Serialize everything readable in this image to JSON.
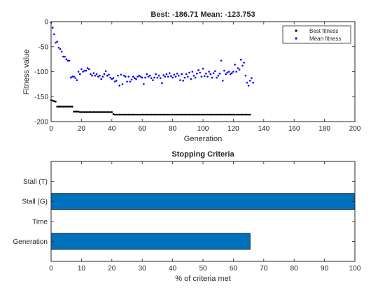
{
  "figure": {
    "background": "#ffffff"
  },
  "chart_data": [
    {
      "type": "scatter",
      "title": "Best: -186.71 Mean: -123.753",
      "xlabel": "Generation",
      "ylabel": "Fitness value",
      "xlim": [
        0,
        200
      ],
      "ylim": [
        -200,
        0
      ],
      "xticks": [
        0,
        20,
        40,
        60,
        80,
        100,
        120,
        140,
        160,
        180,
        200
      ],
      "yticks": [
        -200,
        -150,
        -100,
        -50,
        0
      ],
      "grid": false,
      "legend": "top-right",
      "series": [
        {
          "name": "Best fitness",
          "color": "#000000",
          "marker": "dot",
          "points": [
            [
              0,
              -157
            ],
            [
              1,
              -158
            ],
            [
              2,
              -159
            ],
            [
              3,
              -160
            ],
            [
              4,
              -170
            ],
            [
              5,
              -170
            ],
            [
              6,
              -170
            ],
            [
              7,
              -170
            ],
            [
              8,
              -170
            ],
            [
              9,
              -170
            ],
            [
              10,
              -170
            ],
            [
              11,
              -170
            ],
            [
              12,
              -170
            ],
            [
              13,
              -170
            ],
            [
              14,
              -170
            ],
            [
              15,
              -180
            ],
            [
              16,
              -180
            ],
            [
              17,
              -180
            ],
            [
              18,
              -180
            ],
            [
              19,
              -181
            ],
            [
              20,
              -181
            ],
            [
              21,
              -181
            ],
            [
              22,
              -181
            ],
            [
              23,
              -181
            ],
            [
              24,
              -181
            ],
            [
              25,
              -181
            ],
            [
              26,
              -181
            ],
            [
              27,
              -181
            ],
            [
              28,
              -181
            ],
            [
              29,
              -181
            ],
            [
              30,
              -181
            ],
            [
              31,
              -181
            ],
            [
              32,
              -181
            ],
            [
              33,
              -181
            ],
            [
              34,
              -181
            ],
            [
              35,
              -181
            ],
            [
              36,
              -181
            ],
            [
              37,
              -181
            ],
            [
              38,
              -181
            ],
            [
              39,
              -181
            ],
            [
              40,
              -181
            ],
            [
              41,
              -185
            ],
            [
              42,
              -186
            ],
            [
              43,
              -186
            ],
            [
              44,
              -186
            ],
            [
              45,
              -186
            ],
            [
              46,
              -186
            ],
            [
              47,
              -186
            ],
            [
              48,
              -186
            ],
            [
              49,
              -186
            ],
            [
              50,
              -186
            ],
            [
              51,
              -186
            ],
            [
              52,
              -186
            ],
            [
              53,
              -186
            ],
            [
              54,
              -186
            ],
            [
              55,
              -186
            ],
            [
              56,
              -186
            ],
            [
              57,
              -186
            ],
            [
              58,
              -186
            ],
            [
              59,
              -186
            ],
            [
              60,
              -186
            ],
            [
              61,
              -186
            ],
            [
              62,
              -186
            ],
            [
              63,
              -186
            ],
            [
              64,
              -186
            ],
            [
              65,
              -186
            ],
            [
              66,
              -186
            ],
            [
              67,
              -186
            ],
            [
              68,
              -186
            ],
            [
              69,
              -186
            ],
            [
              70,
              -186
            ],
            [
              71,
              -186
            ],
            [
              72,
              -186
            ],
            [
              73,
              -186
            ],
            [
              74,
              -186
            ],
            [
              75,
              -186
            ],
            [
              76,
              -186
            ],
            [
              77,
              -186
            ],
            [
              78,
              -186
            ],
            [
              79,
              -186
            ],
            [
              80,
              -186
            ],
            [
              81,
              -186
            ],
            [
              82,
              -186
            ],
            [
              83,
              -186
            ],
            [
              84,
              -186
            ],
            [
              85,
              -186
            ],
            [
              86,
              -186
            ],
            [
              87,
              -186
            ],
            [
              88,
              -186
            ],
            [
              89,
              -186
            ],
            [
              90,
              -186
            ],
            [
              91,
              -186
            ],
            [
              92,
              -186
            ],
            [
              93,
              -186
            ],
            [
              94,
              -186
            ],
            [
              95,
              -186
            ],
            [
              96,
              -186
            ],
            [
              97,
              -186
            ],
            [
              98,
              -186
            ],
            [
              99,
              -186
            ],
            [
              100,
              -186
            ],
            [
              101,
              -186
            ],
            [
              102,
              -186
            ],
            [
              103,
              -186
            ],
            [
              104,
              -186
            ],
            [
              105,
              -186
            ],
            [
              106,
              -186
            ],
            [
              107,
              -186
            ],
            [
              108,
              -186
            ],
            [
              109,
              -186
            ],
            [
              110,
              -186
            ],
            [
              111,
              -186
            ],
            [
              112,
              -186
            ],
            [
              113,
              -186
            ],
            [
              114,
              -186
            ],
            [
              115,
              -186
            ],
            [
              116,
              -186
            ],
            [
              117,
              -186
            ],
            [
              118,
              -186
            ],
            [
              119,
              -186
            ],
            [
              120,
              -186
            ],
            [
              121,
              -186
            ],
            [
              122,
              -186
            ],
            [
              123,
              -186
            ],
            [
              124,
              -186
            ],
            [
              125,
              -186
            ],
            [
              126,
              -186
            ],
            [
              127,
              -186
            ],
            [
              128,
              -186
            ],
            [
              129,
              -186
            ],
            [
              130,
              -186
            ],
            [
              131,
              -186
            ]
          ]
        },
        {
          "name": "Mean fitness",
          "color": "#0000ff",
          "marker": "dot",
          "points": [
            [
              0,
              -2
            ],
            [
              1,
              -12
            ],
            [
              2,
              -25
            ],
            [
              3,
              -42
            ],
            [
              4,
              -40
            ],
            [
              5,
              -52
            ],
            [
              6,
              -55
            ],
            [
              7,
              -60
            ],
            [
              8,
              -70
            ],
            [
              9,
              -70
            ],
            [
              10,
              -75
            ],
            [
              11,
              -78
            ],
            [
              12,
              -78
            ],
            [
              13,
              -112
            ],
            [
              14,
              -110
            ],
            [
              15,
              -110
            ],
            [
              16,
              -113
            ],
            [
              17,
              -117
            ],
            [
              18,
              -100
            ],
            [
              19,
              -105
            ],
            [
              20,
              -95
            ],
            [
              21,
              -100
            ],
            [
              22,
              -98
            ],
            [
              23,
              -98
            ],
            [
              24,
              -93
            ],
            [
              25,
              -95
            ],
            [
              26,
              -105
            ],
            [
              27,
              -108
            ],
            [
              28,
              -103
            ],
            [
              29,
              -108
            ],
            [
              30,
              -105
            ],
            [
              31,
              -110
            ],
            [
              32,
              -108
            ],
            [
              33,
              -115
            ],
            [
              34,
              -110
            ],
            [
              35,
              -105
            ],
            [
              36,
              -99
            ],
            [
              37,
              -108
            ],
            [
              38,
              -106
            ],
            [
              39,
              -112
            ],
            [
              40,
              -115
            ],
            [
              41,
              -113
            ],
            [
              42,
              -120
            ],
            [
              43,
              -118
            ],
            [
              44,
              -108
            ],
            [
              45,
              -128
            ],
            [
              46,
              -106
            ],
            [
              47,
              -125
            ],
            [
              48,
              -108
            ],
            [
              49,
              -110
            ],
            [
              50,
              -120
            ],
            [
              51,
              -110
            ],
            [
              52,
              -120
            ],
            [
              53,
              -116
            ],
            [
              54,
              -110
            ],
            [
              55,
              -113
            ],
            [
              56,
              -115
            ],
            [
              57,
              -110
            ],
            [
              58,
              -108
            ],
            [
              59,
              -110
            ],
            [
              60,
              -112
            ],
            [
              61,
              -125
            ],
            [
              62,
              -112
            ],
            [
              63,
              -105
            ],
            [
              64,
              -110
            ],
            [
              65,
              -108
            ],
            [
              66,
              -113
            ],
            [
              67,
              -117
            ],
            [
              68,
              -112
            ],
            [
              69,
              -105
            ],
            [
              70,
              -112
            ],
            [
              71,
              -108
            ],
            [
              72,
              -113
            ],
            [
              73,
              -123
            ],
            [
              74,
              -107
            ],
            [
              75,
              -110
            ],
            [
              76,
              -105
            ],
            [
              77,
              -110
            ],
            [
              78,
              -103
            ],
            [
              79,
              -109
            ],
            [
              80,
              -112
            ],
            [
              81,
              -106
            ],
            [
              82,
              -110
            ],
            [
              83,
              -104
            ],
            [
              84,
              -108
            ],
            [
              85,
              -117
            ],
            [
              86,
              -105
            ],
            [
              87,
              -118
            ],
            [
              88,
              -112
            ],
            [
              89,
              -105
            ],
            [
              90,
              -110
            ],
            [
              91,
              -102
            ],
            [
              92,
              -115
            ],
            [
              93,
              -100
            ],
            [
              94,
              -108
            ],
            [
              95,
              -112
            ],
            [
              96,
              -104
            ],
            [
              97,
              -97
            ],
            [
              98,
              -102
            ],
            [
              99,
              -110
            ],
            [
              100,
              -94
            ],
            [
              101,
              -109
            ],
            [
              102,
              -104
            ],
            [
              103,
              -110
            ],
            [
              104,
              -100
            ],
            [
              105,
              -105
            ],
            [
              106,
              -112
            ],
            [
              107,
              -103
            ],
            [
              108,
              -99
            ],
            [
              109,
              -112
            ],
            [
              110,
              -108
            ],
            [
              111,
              -104
            ],
            [
              112,
              -78
            ],
            [
              113,
              -118
            ],
            [
              114,
              -98
            ],
            [
              115,
              -105
            ],
            [
              116,
              -102
            ],
            [
              117,
              -100
            ],
            [
              118,
              -105
            ],
            [
              119,
              -103
            ],
            [
              120,
              -100
            ],
            [
              121,
              -86
            ],
            [
              122,
              -100
            ],
            [
              123,
              -93
            ],
            [
              124,
              -96
            ],
            [
              125,
              -76
            ],
            [
              126,
              -88
            ],
            [
              127,
              -82
            ],
            [
              128,
              -108
            ],
            [
              129,
              -122
            ],
            [
              130,
              -128
            ],
            [
              131,
              -118
            ],
            [
              132,
              -113
            ],
            [
              133,
              -122
            ]
          ]
        }
      ]
    },
    {
      "type": "bar",
      "orientation": "horizontal",
      "title": "Stopping Criteria",
      "xlabel": "% of criteria met",
      "ylabel": "",
      "categories": [
        "Stall (T)",
        "Stall (G)",
        "Time",
        "Generation"
      ],
      "values": [
        0,
        100,
        0,
        65.5
      ],
      "xlim": [
        0,
        100
      ],
      "xticks": [
        0,
        10,
        20,
        30,
        40,
        50,
        60,
        70,
        80,
        90,
        100
      ],
      "bar_color": "#0072bd",
      "grid": false
    }
  ]
}
